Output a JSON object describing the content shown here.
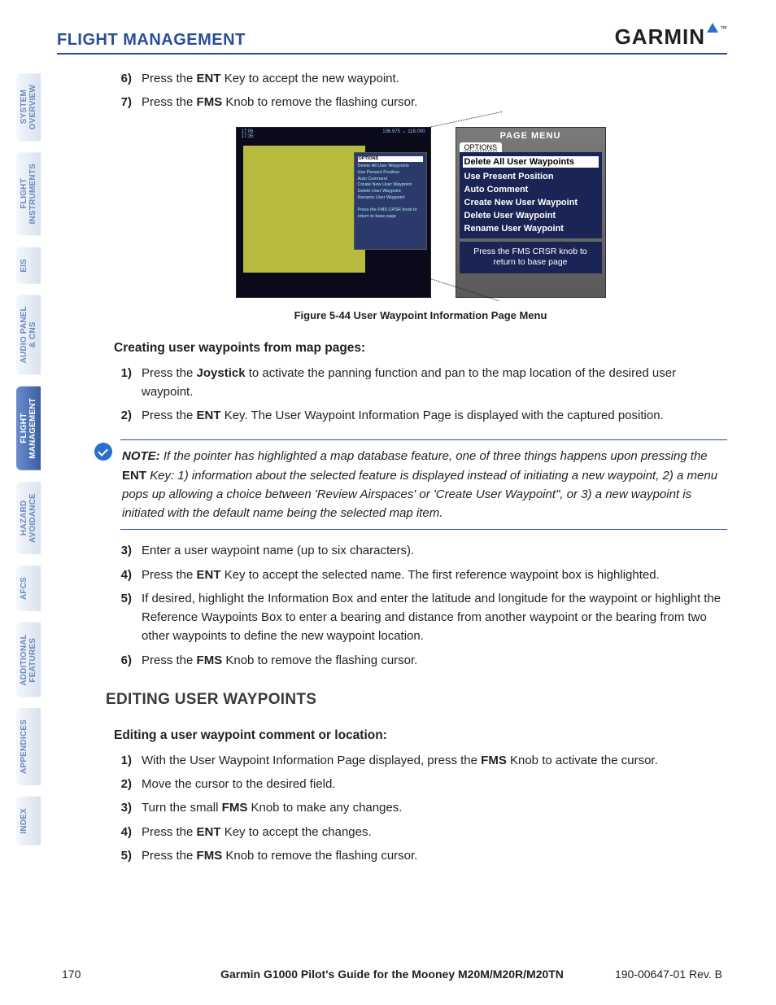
{
  "header": {
    "section": "FLIGHT MANAGEMENT",
    "logo_text": "GARMIN",
    "logo_tm": "™"
  },
  "tabs": [
    {
      "line1": "SYSTEM",
      "line2": "OVERVIEW",
      "active": false
    },
    {
      "line1": "FLIGHT",
      "line2": "INSTRUMENTS",
      "active": false
    },
    {
      "line1": "EIS",
      "line2": "",
      "active": false
    },
    {
      "line1": "AUDIO PANEL",
      "line2": "& CNS",
      "active": false
    },
    {
      "line1": "FLIGHT",
      "line2": "MANAGEMENT",
      "active": true
    },
    {
      "line1": "HAZARD",
      "line2": "AVOIDANCE",
      "active": false
    },
    {
      "line1": "AFCS",
      "line2": "",
      "active": false
    },
    {
      "line1": "ADDITIONAL",
      "line2": "FEATURES",
      "active": false
    },
    {
      "line1": "APPENDICES",
      "line2": "",
      "active": false
    },
    {
      "line1": "INDEX",
      "line2": "",
      "active": false
    }
  ],
  "top_steps": [
    {
      "n": "6)",
      "pre": "Press the ",
      "key": "ENT",
      "post": " Key to accept the new waypoint."
    },
    {
      "n": "7)",
      "pre": "Press the ",
      "key": "FMS",
      "post": " Knob to remove the flashing cursor."
    }
  ],
  "figure": {
    "map": {
      "top_left": "17:06\n17:35",
      "top_right": "136.975 ↔ 118.000",
      "overlay_title": "OPTIONS",
      "overlay_lines": "Delete All User Waypoints\nUse Present Position\nAuto Comment\nCreate New User Waypoint\nDelete User Waypoint\nRename User Waypoint\n\nPress the FMS CRSR knob to\nreturn to base page"
    },
    "menu": {
      "title": "PAGE MENU",
      "tab": "OPTIONS",
      "items": [
        {
          "label": "Delete All User Waypoints",
          "highlight": true
        },
        {
          "label": "Use Present Position",
          "highlight": false
        },
        {
          "label": "Auto Comment",
          "highlight": false
        },
        {
          "label": "Create New User Waypoint",
          "highlight": false
        },
        {
          "label": "Delete User Waypoint",
          "highlight": false
        },
        {
          "label": "Rename User Waypoint",
          "highlight": false
        }
      ],
      "footer": "Press the FMS CRSR knob to\nreturn to base page"
    },
    "caption": "Figure 5-44  User Waypoint Information Page Menu"
  },
  "sub1": {
    "heading": "Creating user waypoints from map pages:",
    "steps_a": [
      {
        "n": "1)",
        "pre": "Press the ",
        "key": "Joystick",
        "post": " to activate the panning function and pan to the map location of the desired user waypoint."
      },
      {
        "n": "2)",
        "pre": "Press the ",
        "key": "ENT",
        "post": " Key.  The User Waypoint Information Page is displayed with the captured position."
      }
    ]
  },
  "note": {
    "lead": "NOTE:",
    "body_before_key": "  If the pointer has highlighted a map database feature, one of three things happens upon pressing the ",
    "key": "ENT",
    "body_after_key": " Key: 1) information about the selected feature is displayed instead of initiating a new waypoint, 2) a menu pops up allowing a choice between 'Review Airspaces' or 'Create User Waypoint\", or 3) a new waypoint is initiated with the default name being the selected map item."
  },
  "sub1b": {
    "steps_b": [
      {
        "n": "3)",
        "text": "Enter a user waypoint name (up to six characters)."
      },
      {
        "n": "4)",
        "pre": "Press the ",
        "key": "ENT",
        "post": " Key to accept the selected name.  The first reference waypoint box is highlighted."
      },
      {
        "n": "5)",
        "text": "If desired, highlight the Information Box and enter the latitude and longitude for the waypoint or highlight the Reference Waypoints Box to enter a bearing and distance from another waypoint or the bearing from two other waypoints to define the new waypoint location."
      },
      {
        "n": "6)",
        "pre": "Press the ",
        "key": "FMS",
        "post": " Knob to remove the flashing cursor."
      }
    ]
  },
  "h2": "EDITING USER WAYPOINTS",
  "sub2": {
    "heading": "Editing a user waypoint comment or location:",
    "steps": [
      {
        "n": "1)",
        "pre": "With the User Waypoint Information Page displayed, press the ",
        "key": "FMS",
        "post": " Knob to activate the cursor."
      },
      {
        "n": "2)",
        "text": "Move the cursor to the desired field."
      },
      {
        "n": "3)",
        "pre": "Turn the small ",
        "key": "FMS",
        "post": " Knob to make any changes."
      },
      {
        "n": "4)",
        "pre": "Press the ",
        "key": "ENT",
        "post": " Key to accept the changes."
      },
      {
        "n": "5)",
        "pre": "Press the ",
        "key": "FMS",
        "post": " Knob to remove the flashing cursor."
      }
    ]
  },
  "footer": {
    "page": "170",
    "center": "Garmin G1000 Pilot's Guide for the Mooney M20M/M20R/M20TN",
    "right": "190-00647-01   Rev. B"
  },
  "colors": {
    "brand_blue": "#2a4d9b",
    "tab_inactive_text": "#6a8abf",
    "tab_active_bg": "#3a5fa0",
    "menu_bg": "#1a2555",
    "map_green": "#b7bb3f"
  }
}
